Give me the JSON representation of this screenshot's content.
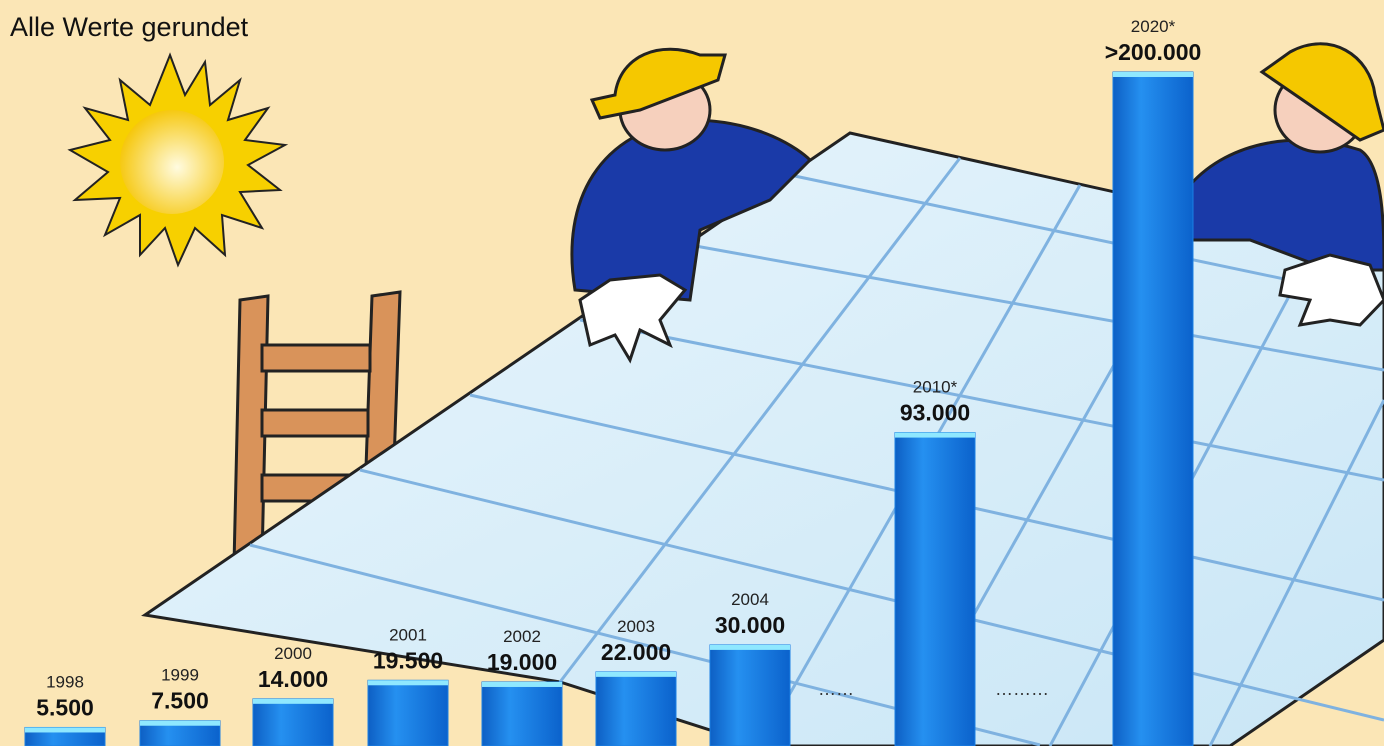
{
  "chart_data": {
    "type": "bar",
    "subtitle": "Alle Werte gerundet",
    "categories": [
      "1998",
      "1999",
      "2000",
      "2001",
      "2002",
      "2003",
      "2004",
      "2010*",
      "2020*"
    ],
    "values": [
      5500,
      7500,
      14000,
      19500,
      19000,
      22000,
      30000,
      93000,
      200000
    ],
    "value_labels": [
      "5.500",
      "7.500",
      "14.000",
      "19.500",
      "19.000",
      "22.000",
      "30.000",
      "93.000",
      ">200.000"
    ],
    "color": "#1b7fe3"
  }
}
